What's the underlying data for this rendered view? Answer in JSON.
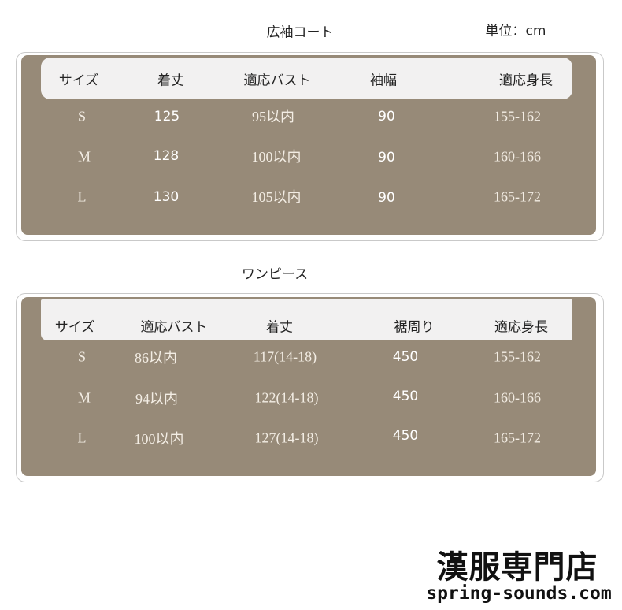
{
  "unit_label": "単位：cm",
  "tables": [
    {
      "title": "広袖コート",
      "headers": [
        "サイズ",
        "着丈",
        "適応バスト",
        "袖幅",
        "適応身長"
      ],
      "rows": [
        [
          "S",
          "125",
          "95以内",
          "90",
          "155-162"
        ],
        [
          "M",
          "128",
          "100以内",
          "90",
          "160-166"
        ],
        [
          "L",
          "130",
          "105以内",
          "90",
          "165-172"
        ]
      ]
    },
    {
      "title": "ワンピース",
      "headers": [
        "サイズ",
        "適応バスト",
        "着丈",
        "裾周り",
        "適応身長"
      ],
      "rows": [
        [
          "S",
          "86以内",
          "117(14-18)",
          "450",
          "155-162"
        ],
        [
          "M",
          "94以内",
          "122(14-18)",
          "450",
          "160-166"
        ],
        [
          "L",
          "100以内",
          "127(14-18)",
          "450",
          "165-172"
        ]
      ]
    }
  ],
  "logo": {
    "name": "漢服専門店",
    "url": "spring-sounds.com"
  },
  "colors": {
    "panel": "#978a78",
    "header": "#f2f1f1"
  }
}
